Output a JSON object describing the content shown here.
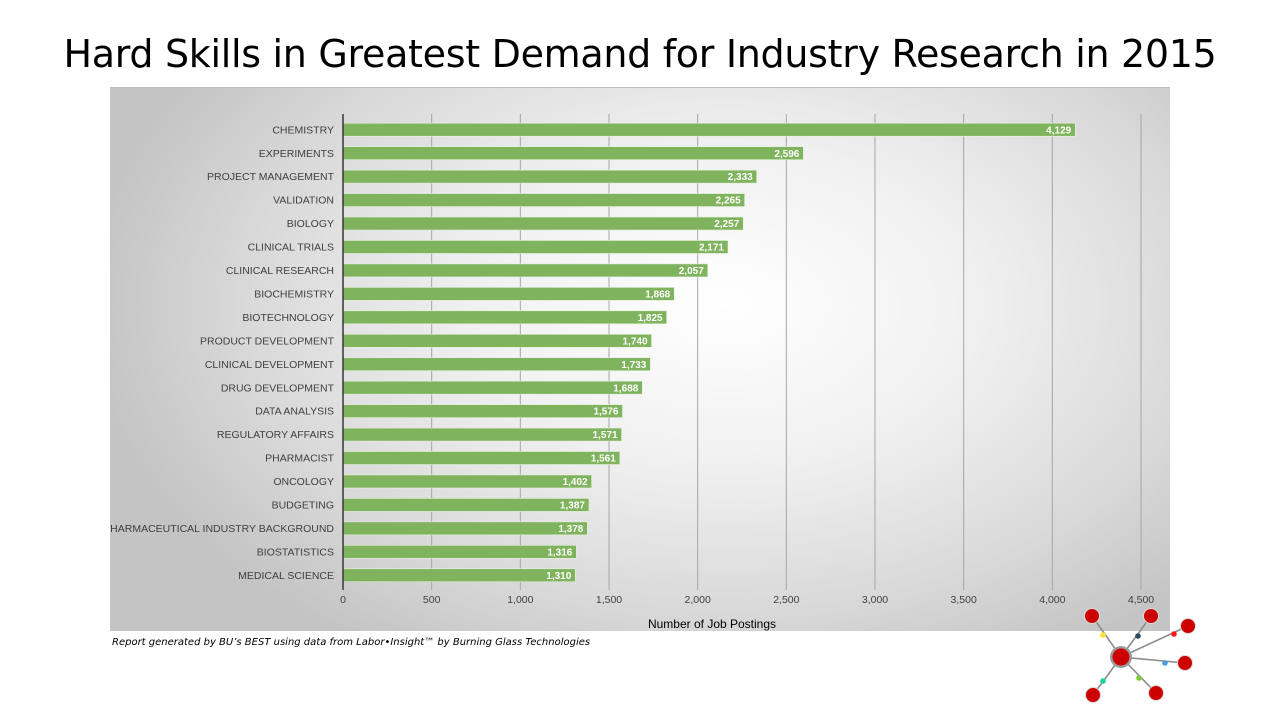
{
  "slide": {
    "title": "Hard Skills in Greatest Demand for Industry Research in 2015",
    "footnote": "Report generated by BU’s BEST using data from Labor•Insight™ by Burning Glass Technologies"
  },
  "colors": {
    "bar": "#7fb35d",
    "axis_line": "#404040",
    "gridline": "#a6a6a6",
    "logo_node": "#cc0000",
    "logo_link": "#8c8c8c",
    "logo_dots": [
      "#ffe135",
      "#2e4a5a",
      "#ff1a1a",
      "#4a9bd6",
      "#7ccc3a",
      "#1ccfa5"
    ]
  },
  "chart_data": {
    "type": "bar",
    "orientation": "horizontal",
    "title": "",
    "xlabel": "Number of Job Postings",
    "ylabel": "",
    "xlim": [
      0,
      4500
    ],
    "xticks": [
      0,
      500,
      1000,
      1500,
      2000,
      2500,
      3000,
      3500,
      4000,
      4500
    ],
    "xtick_labels": [
      "0",
      "500",
      "1,000",
      "1,500",
      "2,000",
      "2,500",
      "3,000",
      "3,500",
      "4,000",
      "4,500"
    ],
    "grid": true,
    "legend": "none",
    "categories": [
      "CHEMISTRY",
      "EXPERIMENTS",
      "PROJECT MANAGEMENT",
      "VALIDATION",
      "BIOLOGY",
      "CLINICAL TRIALS",
      "CLINICAL RESEARCH",
      "BIOCHEMISTRY",
      "BIOTECHNOLOGY",
      "PRODUCT DEVELOPMENT",
      "CLINICAL DEVELOPMENT",
      "DRUG DEVELOPMENT",
      "DATA ANALYSIS",
      "REGULATORY AFFAIRS",
      "PHARMACIST",
      "ONCOLOGY",
      "BUDGETING",
      "PHARMACEUTICAL INDUSTRY BACKGROUND",
      "BIOSTATISTICS",
      "MEDICAL SCIENCE"
    ],
    "values": [
      4129,
      2596,
      2333,
      2265,
      2257,
      2171,
      2057,
      1868,
      1825,
      1740,
      1733,
      1688,
      1576,
      1571,
      1561,
      1402,
      1387,
      1378,
      1316,
      1310
    ],
    "data_labels": [
      "4,129",
      "2,596",
      "2,333",
      "2,265",
      "2,257",
      "2,171",
      "2,057",
      "1,868",
      "1,825",
      "1,740",
      "1,733",
      "1,688",
      "1,576",
      "1,571",
      "1,561",
      "1,402",
      "1,387",
      "1,378",
      "1,316",
      "1,310"
    ]
  },
  "logo": {
    "name": "network-logo"
  }
}
